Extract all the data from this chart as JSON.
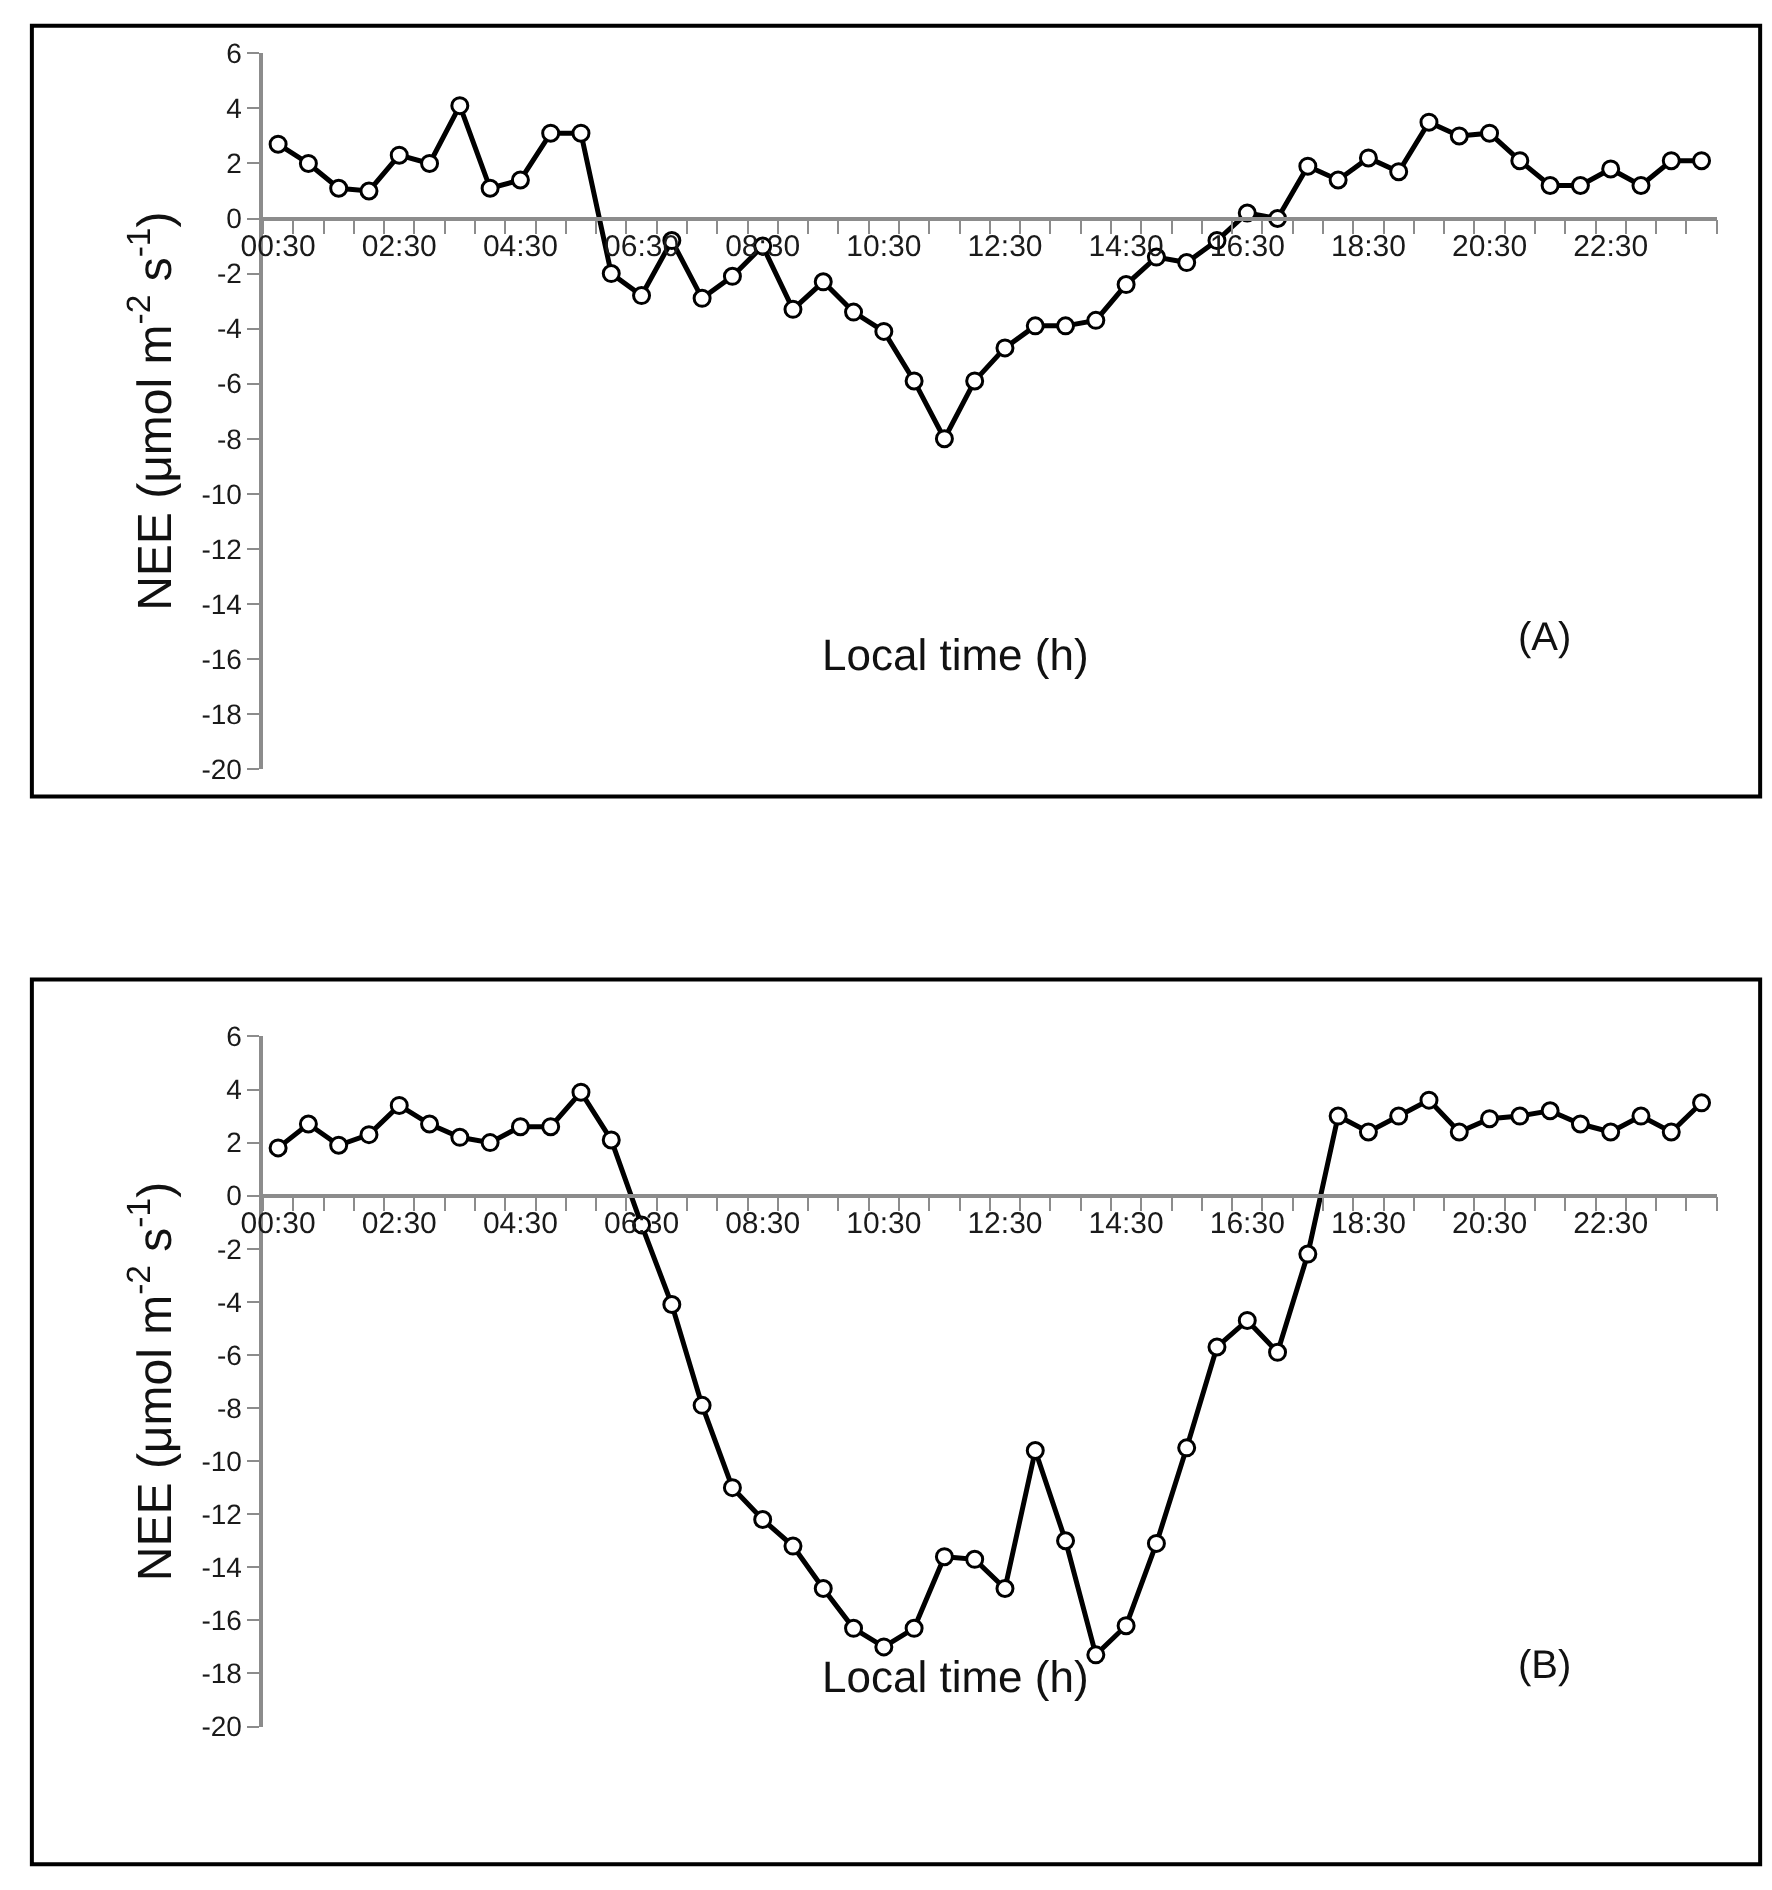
{
  "chart_data": [
    {
      "type": "line",
      "xlabel": "Local time (h)",
      "ylabel": "NEE (μmol m$^{-2}$ s$^{-1}$)",
      "annotations": [
        "(A)"
      ],
      "categories": [
        "00:30",
        null,
        null,
        null,
        "02:30",
        null,
        null,
        null,
        "04:30",
        null,
        null,
        null,
        "06:30",
        null,
        null,
        null,
        "08:30",
        null,
        null,
        null,
        "10:30",
        null,
        null,
        null,
        "12:30",
        null,
        null,
        null,
        "14:30",
        null,
        null,
        null,
        "16:30",
        null,
        null,
        null,
        "18:30",
        null,
        null,
        null,
        "20:30",
        null,
        null,
        null,
        "22:30",
        null,
        null,
        null
      ],
      "values": [
        2.7,
        2.0,
        1.1,
        1.0,
        2.3,
        2.0,
        4.1,
        1.1,
        1.4,
        3.1,
        3.1,
        -2.0,
        -2.8,
        -0.8,
        -2.9,
        -2.1,
        -1.0,
        -3.3,
        -2.3,
        -3.4,
        -4.1,
        -5.9,
        -8.0,
        -5.9,
        -4.7,
        -3.9,
        -3.9,
        -3.7,
        -2.4,
        -1.4,
        -1.6,
        -0.8,
        0.2,
        0.0,
        1.9,
        1.4,
        2.2,
        1.7,
        3.5,
        3.0,
        3.1,
        2.1,
        1.2,
        1.2,
        1.8,
        1.2,
        2.1,
        2.1
      ],
      "color": "#000000",
      "marker": "circle",
      "line_style": "solid",
      "ylim": [
        -20,
        6
      ],
      "yticks": [
        6,
        4,
        2,
        0,
        -2,
        -4,
        -6,
        -8,
        -10,
        -12,
        -14,
        -16,
        -18,
        -20
      ]
    },
    {
      "type": "line",
      "xlabel": "Local time (h)",
      "ylabel": "NEE (μmol m$^{-2}$ s$^{-1}$)",
      "annotations": [
        "(B)"
      ],
      "categories": [
        "00:30",
        null,
        null,
        null,
        "02:30",
        null,
        null,
        null,
        "04:30",
        null,
        null,
        null,
        "06:30",
        null,
        null,
        null,
        "08:30",
        null,
        null,
        null,
        "10:30",
        null,
        null,
        null,
        "12:30",
        null,
        null,
        null,
        "14:30",
        null,
        null,
        null,
        "16:30",
        null,
        null,
        null,
        "18:30",
        null,
        null,
        null,
        "20:30",
        null,
        null,
        null,
        "22:30",
        null,
        null,
        null
      ],
      "values": [
        1.8,
        2.7,
        1.9,
        2.3,
        3.4,
        2.7,
        2.2,
        2.0,
        2.6,
        2.6,
        3.9,
        2.1,
        -1.1,
        -4.1,
        -7.9,
        -11.0,
        -12.2,
        -13.2,
        -14.8,
        -16.3,
        -17.0,
        -16.3,
        -13.6,
        -13.7,
        -14.8,
        -9.6,
        -13.0,
        -17.3,
        -16.2,
        -13.1,
        -9.5,
        -5.7,
        -4.7,
        -5.9,
        -2.2,
        3.0,
        2.4,
        3.0,
        3.6,
        2.4,
        2.9,
        3.0,
        3.2,
        2.7,
        2.4,
        3.0,
        2.4,
        3.5
      ],
      "color": "#000000",
      "marker": "circle",
      "line_style": "solid",
      "ylim": [
        -20,
        6
      ],
      "yticks": [
        6,
        4,
        2,
        0,
        -2,
        -4,
        -6,
        -8,
        -10,
        -12,
        -14,
        -16,
        -18,
        -20
      ]
    }
  ]
}
